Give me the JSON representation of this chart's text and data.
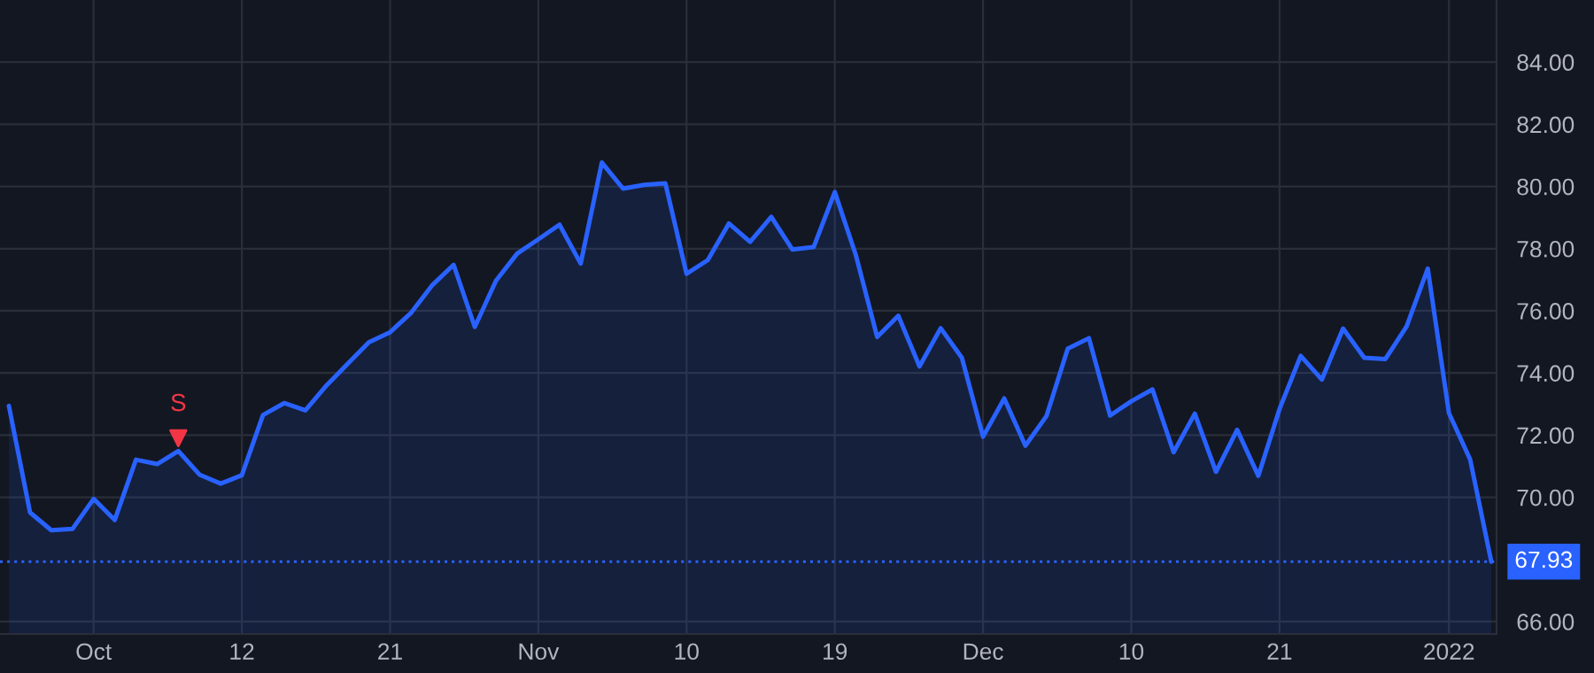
{
  "chart_data": {
    "type": "area",
    "categories": [
      null,
      null,
      null,
      null,
      "Oct",
      null,
      null,
      null,
      null,
      null,
      null,
      "12",
      null,
      null,
      null,
      null,
      null,
      null,
      "21",
      null,
      null,
      null,
      null,
      null,
      null,
      "Nov",
      null,
      null,
      null,
      null,
      null,
      null,
      "10",
      null,
      null,
      null,
      null,
      null,
      null,
      "19",
      null,
      null,
      null,
      null,
      null,
      null,
      "Dec",
      null,
      null,
      null,
      null,
      null,
      null,
      "10",
      null,
      null,
      null,
      null,
      null,
      null,
      "21",
      null,
      null,
      null,
      null,
      null,
      null,
      null,
      "2022",
      null,
      null
    ],
    "series": [
      {
        "color": "#2962ff",
        "values": [
          72.94,
          69.51,
          68.94,
          68.98,
          69.95,
          69.27,
          71.21,
          71.07,
          71.49,
          70.73,
          70.44,
          70.71,
          72.65,
          73.03,
          72.8,
          73.6,
          74.3,
          74.99,
          75.31,
          75.94,
          76.83,
          77.48,
          75.48,
          76.97,
          77.84,
          78.3,
          78.77,
          77.52,
          80.77,
          79.93,
          80.05,
          80.1,
          77.19,
          77.63,
          78.81,
          78.22,
          79.02,
          77.97,
          78.05,
          79.82,
          77.78,
          75.16,
          75.84,
          74.21,
          75.44,
          74.49,
          71.95,
          73.18,
          71.66,
          72.62,
          74.78,
          75.12,
          72.63,
          73.09,
          73.47,
          71.45,
          72.69,
          70.82,
          72.17,
          70.69,
          72.84,
          74.55,
          73.79,
          75.43,
          74.49,
          74.45,
          75.5,
          77.36,
          72.71,
          71.22,
          67.93
        ]
      },
      {
        "type": "scatter",
        "name": "S",
        "color": "#f23645",
        "marker": "triangle",
        "values": [
          null,
          null,
          null,
          null,
          null,
          null,
          null,
          null,
          71.9,
          null,
          null,
          null,
          null,
          null,
          null,
          null,
          null,
          null,
          null,
          null,
          null,
          null,
          null,
          null,
          null,
          null,
          null,
          null,
          null,
          null,
          null,
          null,
          null,
          null,
          null,
          null,
          null,
          null,
          null,
          null,
          null,
          null,
          null,
          null,
          null,
          null,
          null,
          null,
          null,
          null,
          null,
          null,
          null,
          null,
          null,
          null,
          null,
          null,
          null,
          null,
          null,
          null,
          null,
          null,
          null,
          null,
          null,
          null,
          null,
          null,
          null
        ]
      }
    ],
    "ylim": [
      65.6,
      86.0
    ],
    "yticks": [
      {
        "value": 66,
        "label": "66.00"
      },
      {
        "value": 70,
        "label": "70.00"
      },
      {
        "value": 72,
        "label": "72.00"
      },
      {
        "value": 74,
        "label": "74.00"
      },
      {
        "value": 76,
        "label": "76.00"
      },
      {
        "value": 78,
        "label": "78.00"
      },
      {
        "value": 80,
        "label": "80.00"
      },
      {
        "value": 82,
        "label": "82.00"
      },
      {
        "value": 84,
        "label": "84.00"
      }
    ],
    "ref_lines": [
      {
        "axis": "y",
        "value": 67.93,
        "label": "67.93",
        "color": "#2962ff",
        "line_style": "dotted"
      }
    ],
    "grid": true,
    "line_style": "solid"
  }
}
